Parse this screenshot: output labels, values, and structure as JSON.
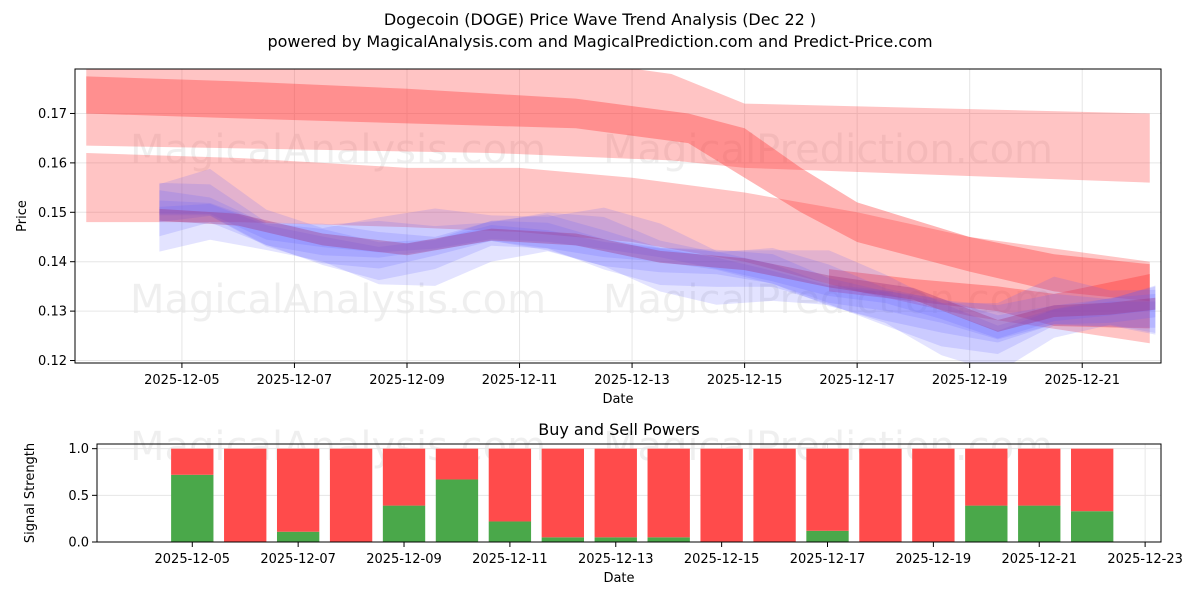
{
  "figure": {
    "title_line1": "Dogecoin (DOGE) Price Wave Trend Analysis (Dec 22 )",
    "title_line2": "powered by MagicalAnalysis.com and MagicalPrediction.com and Predict-Price.com",
    "watermarks": [
      "MagicalAnalysis.com",
      "MagicalPrediction.com"
    ]
  },
  "chart_data": [
    {
      "type": "area",
      "title": "Dogecoin (DOGE) Price Wave Trend Analysis (Dec 22 )",
      "xlabel": "Date",
      "ylabel": "Price",
      "xlim": [
        2.1,
        21.4
      ],
      "ylim": [
        0.1195,
        0.179
      ],
      "yticks": [
        0.12,
        0.13,
        0.14,
        0.15,
        0.16,
        0.17
      ],
      "ytick_labels": [
        "0.12",
        "0.13",
        "0.14",
        "0.15",
        "0.16",
        "0.17"
      ],
      "xticks": [
        4,
        6,
        8,
        10,
        12,
        14,
        16,
        18,
        20
      ],
      "xtick_labels": [
        "2025-12-05",
        "2025-12-07",
        "2025-12-09",
        "2025-12-11",
        "2025-12-13",
        "2025-12-15",
        "2025-12-17",
        "2025-12-19",
        "2025-12-21"
      ],
      "grid": true,
      "red_bands": [
        {
          "name": "upper-band-outer",
          "opacity": 0.3,
          "x": [
            2.3,
            9.5,
            12.7,
            14,
            21.2
          ],
          "upper": [
            0.183,
            0.183,
            0.178,
            0.172,
            0.17
          ],
          "lower": [
            0.1635,
            0.162,
            0.1605,
            0.159,
            0.156
          ]
        },
        {
          "name": "upper-band-core",
          "opacity": 0.38,
          "x": [
            2.3,
            5,
            8,
            11,
            13,
            14,
            15,
            16,
            18,
            19.5,
            21.2
          ],
          "upper": [
            0.1775,
            0.1765,
            0.175,
            0.173,
            0.17,
            0.167,
            0.159,
            0.152,
            0.145,
            0.1415,
            0.1395
          ],
          "lower": [
            0.17,
            0.169,
            0.168,
            0.167,
            0.164,
            0.157,
            0.15,
            0.144,
            0.138,
            0.134,
            0.132
          ]
        },
        {
          "name": "lower-band-outer",
          "opacity": 0.3,
          "x": [
            2.3,
            5,
            8,
            10,
            12,
            14,
            16,
            18,
            21.2
          ],
          "upper": [
            0.162,
            0.161,
            0.159,
            0.159,
            0.157,
            0.154,
            0.15,
            0.145,
            0.14
          ],
          "lower": [
            0.148,
            0.148,
            0.147,
            0.146,
            0.144,
            0.14,
            0.134,
            0.129,
            0.1235
          ]
        },
        {
          "name": "lower-band-core",
          "opacity": 0.38,
          "x": [
            15.5,
            17,
            18.5,
            19.5,
            21.2
          ],
          "upper": [
            0.1385,
            0.1365,
            0.135,
            0.1335,
            0.1375
          ],
          "lower": [
            0.134,
            0.132,
            0.13,
            0.127,
            0.1265
          ]
        }
      ],
      "blue_band": {
        "name": "price-wave",
        "x": [
          3.6,
          4.5,
          5.5,
          6.5,
          7.5,
          8.5,
          9.5,
          10.5,
          11.5,
          12.5,
          13.5,
          14.5,
          15.5,
          16.5,
          17.5,
          18.5,
          19.5,
          20.5,
          21.3
        ],
        "values": [
          0.1505,
          0.151,
          0.146,
          0.144,
          0.1425,
          0.1435,
          0.146,
          0.1455,
          0.1435,
          0.1415,
          0.1395,
          0.1375,
          0.1345,
          0.1325,
          0.129,
          0.1255,
          0.1295,
          0.1305,
          0.131
        ]
      },
      "overlay_line": {
        "name": "purple-overlay",
        "x": [
          3.6,
          5,
          6.5,
          8,
          9.5,
          11,
          12.5,
          14,
          15.5,
          17,
          18.5,
          19.5,
          20.5,
          21.3
        ],
        "values": [
          0.1495,
          0.1485,
          0.1445,
          0.1425,
          0.1455,
          0.1445,
          0.141,
          0.1395,
          0.136,
          0.1335,
          0.127,
          0.13,
          0.1305,
          0.1315
        ]
      }
    },
    {
      "type": "bar",
      "title": "Buy and Sell Powers",
      "xlabel": "Date",
      "ylabel": "Signal Strength",
      "xlim": [
        2.2,
        22.3
      ],
      "ylim": [
        0,
        1.05
      ],
      "yticks": [
        0.0,
        0.5,
        1.0
      ],
      "ytick_labels": [
        "0.0",
        "0.5",
        "1.0"
      ],
      "xticks": [
        4,
        6,
        8,
        10,
        12,
        14,
        16,
        18,
        20,
        22
      ],
      "xtick_labels": [
        "2025-12-05",
        "2025-12-07",
        "2025-12-09",
        "2025-12-11",
        "2025-12-13",
        "2025-12-15",
        "2025-12-17",
        "2025-12-19",
        "2025-12-21",
        "2025-12-23"
      ],
      "grid": true,
      "categories": [
        "2025-12-05",
        "2025-12-06",
        "2025-12-07",
        "2025-12-08",
        "2025-12-09",
        "2025-12-10",
        "2025-12-11",
        "2025-12-12",
        "2025-12-13",
        "2025-12-14",
        "2025-12-15",
        "2025-12-16",
        "2025-12-17",
        "2025-12-18",
        "2025-12-19",
        "2025-12-20",
        "2025-12-21",
        "2025-12-22"
      ],
      "x": [
        4,
        5,
        6,
        7,
        8,
        9,
        10,
        11,
        12,
        13,
        14,
        15,
        16,
        17,
        18,
        19,
        20,
        21
      ],
      "series": [
        {
          "name": "Buy",
          "color": "#4aa84a",
          "values": [
            0.72,
            0.0,
            0.11,
            0.0,
            0.39,
            0.67,
            0.22,
            0.05,
            0.05,
            0.05,
            0.0,
            0.0,
            0.12,
            0.0,
            0.0,
            0.39,
            0.39,
            0.33
          ]
        },
        {
          "name": "Sell",
          "color": "#ff4b4b",
          "values": [
            0.28,
            1.0,
            0.89,
            1.0,
            0.61,
            0.33,
            0.78,
            0.95,
            0.95,
            0.95,
            1.0,
            1.0,
            0.88,
            1.0,
            1.0,
            0.61,
            0.61,
            0.67
          ]
        }
      ]
    }
  ],
  "colors": {
    "red": "#ff3b3b",
    "blue": "#5a5aff",
    "purple": "#a0307a",
    "buy": "#4aa84a",
    "sell": "#ff4b4b"
  }
}
